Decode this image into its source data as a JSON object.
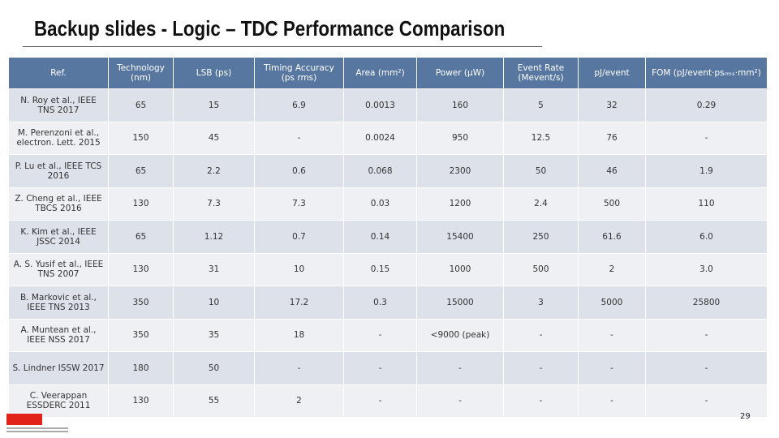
{
  "title": "Backup slides - Logic – TDC Performance Comparison",
  "table": {
    "header": [
      "Ref.",
      "Technology (nm)",
      "LSB (ps)",
      "Timing Accuracy (ps rms)",
      "Area (mm²)",
      "Power (μW)",
      "Event Rate (Mevent/s)",
      "pJ/event",
      "FOM (pJ/event·psᵣₘₛ·mm²)"
    ],
    "rows": [
      [
        "N. Roy et al., IEEE TNS 2017",
        "65",
        "15",
        "6.9",
        "0.0013",
        "160",
        "5",
        "32",
        "0.29"
      ],
      [
        "M. Perenzoni et al., electron. Lett. 2015",
        "150",
        "45",
        "-",
        "0.0024",
        "950",
        "12.5",
        "76",
        "-"
      ],
      [
        "P. Lu et al., IEEE TCS 2016",
        "65",
        "2.2",
        "0.6",
        "0.068",
        "2300",
        "50",
        "46",
        "1.9"
      ],
      [
        "Z. Cheng et al., IEEE TBCS 2016",
        "130",
        "7.3",
        "7.3",
        "0.03",
        "1200",
        "2.4",
        "500",
        "110"
      ],
      [
        "K. Kim et al., IEEE JSSC 2014",
        "65",
        "1.12",
        "0.7",
        "0.14",
        "15400",
        "250",
        "61.6",
        "6.0"
      ],
      [
        "A. S. Yusif et al., IEEE TNS 2007",
        "130",
        "31",
        "10",
        "0.15",
        "1000",
        "500",
        "2",
        "3.0"
      ],
      [
        "B. Markovic et al., IEEE TNS 2013",
        "350",
        "10",
        "17.2",
        "0.3",
        "15000",
        "3",
        "5000",
        "25800"
      ],
      [
        "A. Muntean et al., IEEE NSS 2017",
        "350",
        "35",
        "18",
        "-",
        "<9000 (peak)",
        "-",
        "-",
        "-"
      ],
      [
        "S. Lindner ISSW 2017",
        "180",
        "50",
        "-",
        "-",
        "-",
        "-",
        "-",
        "-"
      ],
      [
        "C. Veerappan ESSDERC 2011",
        "130",
        "55",
        "2",
        "-",
        "-",
        "-",
        "-",
        "-"
      ]
    ]
  },
  "page_number": "29"
}
